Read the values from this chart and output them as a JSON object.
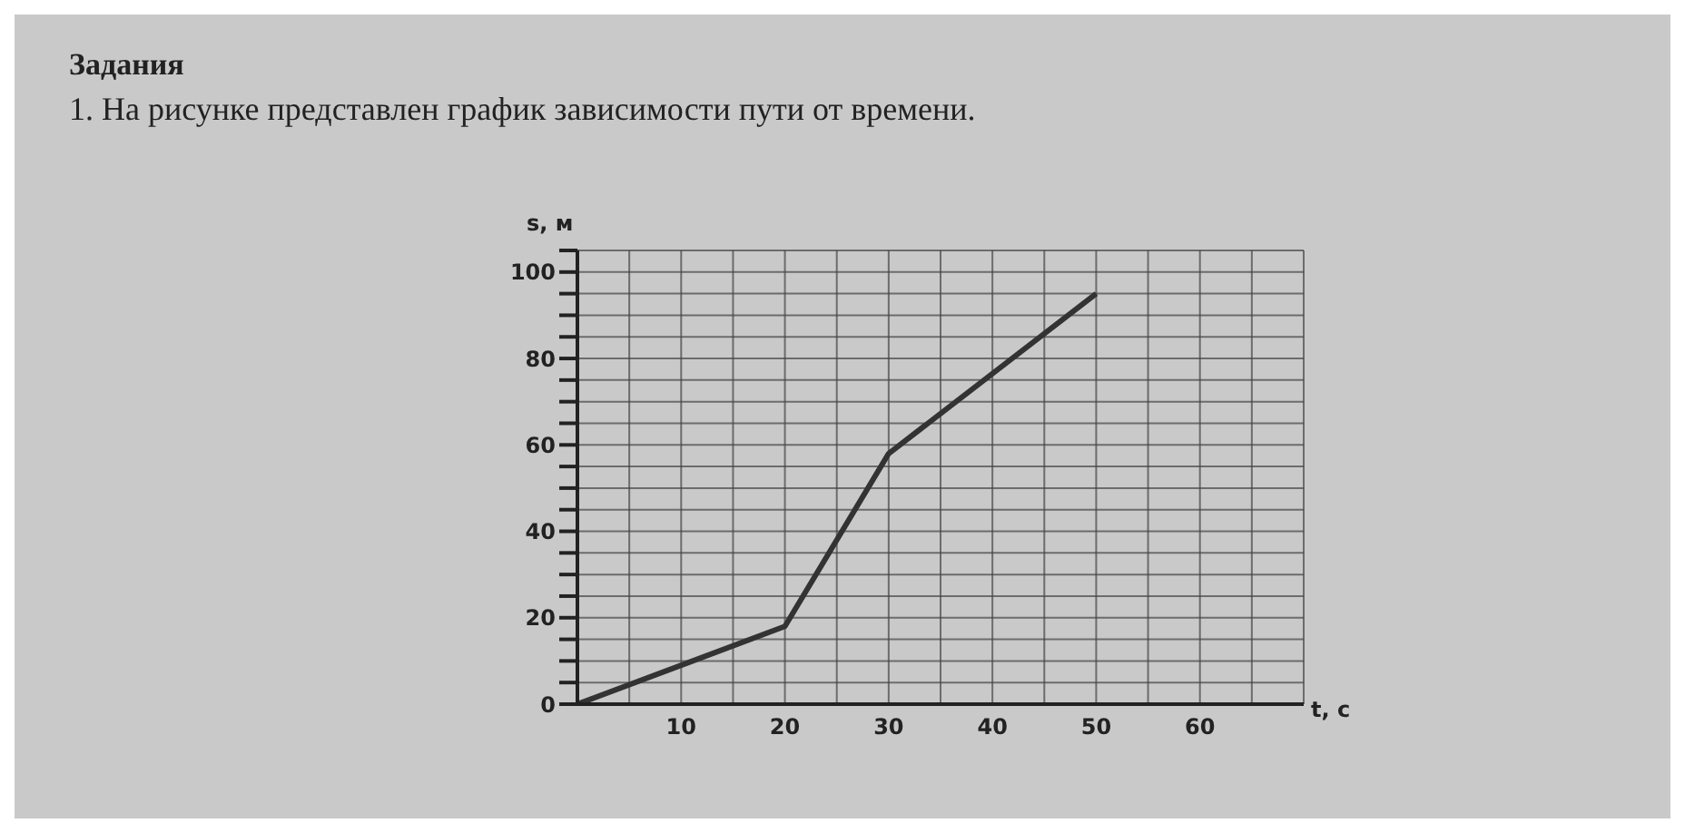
{
  "chart_data": {
    "type": "line",
    "title": "Задания",
    "subtitle": "1. На рисунке представлен график зависимости пути от времени.",
    "xlabel": "t, с",
    "ylabel": "s, м",
    "x": [
      0,
      20,
      30,
      50
    ],
    "series": [
      {
        "color": "#333333",
        "values": [
          0,
          18,
          58,
          95
        ]
      }
    ],
    "xlim": [
      0,
      70
    ],
    "ylim": [
      0,
      105
    ],
    "xticks": [
      {
        "value": 0,
        "label": null
      },
      {
        "value": 5,
        "label": null
      },
      10,
      {
        "value": 15,
        "label": null
      },
      20,
      {
        "value": 25,
        "label": null
      },
      30,
      {
        "value": 35,
        "label": null
      },
      40,
      {
        "value": 45,
        "label": null
      },
      50,
      {
        "value": 55,
        "label": null
      },
      60,
      {
        "value": 65,
        "label": null
      },
      {
        "value": 70,
        "label": null
      }
    ],
    "yticks": [
      0,
      {
        "value": 5,
        "label": null
      },
      {
        "value": 10,
        "label": null
      },
      {
        "value": 15,
        "label": null
      },
      20,
      {
        "value": 25,
        "label": null
      },
      {
        "value": 30,
        "label": null
      },
      {
        "value": 35,
        "label": null
      },
      40,
      {
        "value": 45,
        "label": null
      },
      {
        "value": 50,
        "label": null
      },
      {
        "value": 55,
        "label": null
      },
      60,
      {
        "value": 65,
        "label": null
      },
      {
        "value": 70,
        "label": null
      },
      {
        "value": 75,
        "label": null
      },
      80,
      {
        "value": 85,
        "label": null
      },
      {
        "value": 90,
        "label": null
      },
      {
        "value": 95,
        "label": null
      },
      100,
      {
        "value": 105,
        "label": null
      }
    ],
    "grid": true,
    "marker": "none",
    "line_style": "solid",
    "legend": false
  }
}
